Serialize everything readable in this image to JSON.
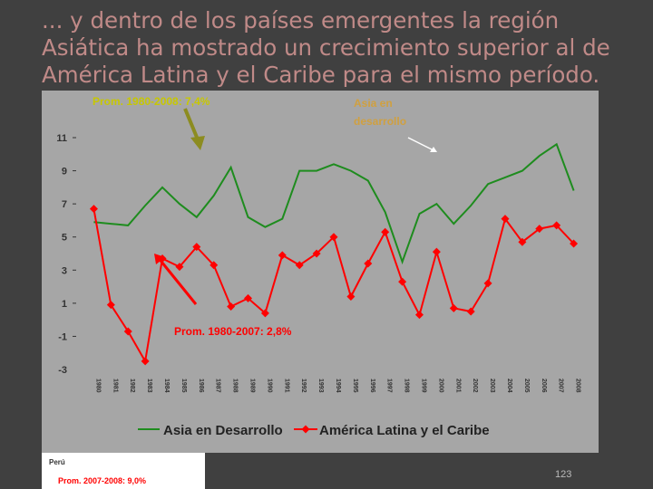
{
  "slide": {
    "title": "... y dentro de los países emergentes la región Asiática ha mostrado un crecimiento superior al de América Latina y el Caribe para el mismo período.",
    "page_number": "123"
  },
  "note": {
    "label": "Perú",
    "text": "Prom. 2007-2008: 9,0%"
  },
  "colors": {
    "asia": "#1e8c1e",
    "latam": "#ff0000",
    "annotation": "#c8c800",
    "arrow_asia": "#8c8c20"
  },
  "chart_data": {
    "type": "line",
    "x": [
      "1980",
      "1981",
      "1982",
      "1983",
      "1984",
      "1985",
      "1986",
      "1987",
      "1988",
      "1989",
      "1990",
      "1991",
      "1992",
      "1993",
      "1994",
      "1995",
      "1996",
      "1997",
      "1998",
      "1999",
      "2000",
      "2001",
      "2002",
      "2003",
      "2004",
      "2005",
      "2006",
      "2007",
      "2008"
    ],
    "series": [
      {
        "name": "Asia en Desarrollo",
        "values": [
          5.9,
          5.8,
          5.7,
          6.9,
          8.0,
          7.0,
          6.2,
          7.5,
          9.2,
          6.2,
          5.6,
          6.1,
          9.0,
          9.0,
          9.4,
          9.0,
          8.4,
          6.5,
          3.5,
          6.4,
          7.0,
          5.8,
          6.9,
          8.2,
          8.6,
          9.0,
          9.9,
          10.6,
          7.8
        ]
      },
      {
        "name": "América Latina y el Caribe",
        "values": [
          6.7,
          0.9,
          -0.7,
          -2.5,
          3.7,
          3.2,
          4.4,
          3.3,
          0.8,
          1.3,
          0.4,
          3.9,
          3.3,
          4.0,
          5.0,
          1.4,
          3.4,
          5.3,
          2.3,
          0.3,
          4.1,
          0.7,
          0.5,
          2.2,
          6.1,
          4.7,
          5.5,
          5.7,
          4.6
        ]
      }
    ],
    "ylim": [
      -3,
      11
    ],
    "yticks": [
      "-3",
      "-1",
      "1",
      "3",
      "5",
      "7",
      "9",
      "11"
    ],
    "legend_position": "bottom",
    "annotations": {
      "asia_avg": "Prom. 1980-2008: 7,4%",
      "asia_label_line1": "Asia en",
      "asia_label_line2": "desarrollo",
      "latam_avg": "Prom. 1980-2007: 2,8%"
    }
  }
}
